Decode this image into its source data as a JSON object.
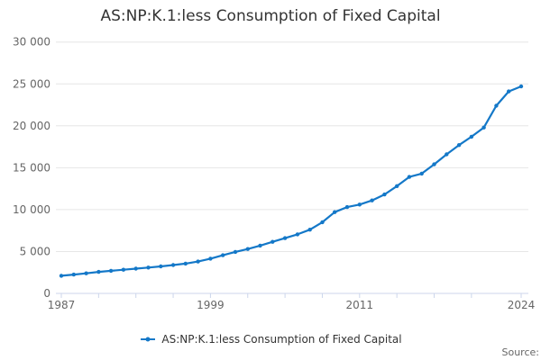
{
  "title": "AS:NP:K.1:less Consumption of Fixed Capital",
  "legend": {
    "label": "AS:NP:K.1:less Consumption of Fixed Capital"
  },
  "source_label": "Source:",
  "colors": {
    "series": "#1478c8",
    "grid": "#e6e6e6",
    "axis": "#ccd6eb",
    "axis_text": "#666666",
    "title_text": "#333333",
    "legend_text": "#333333",
    "source_text": "#666666"
  },
  "chart_data": {
    "type": "line",
    "title": "AS:NP:K.1:less Consumption of Fixed Capital",
    "xlabel": "",
    "ylabel": "",
    "xlim": [
      1987,
      2024
    ],
    "ylim": [
      0,
      30000
    ],
    "grid": true,
    "legend_position": "bottom",
    "marker": "circle",
    "yticks": [
      0,
      5000,
      10000,
      15000,
      20000,
      25000,
      30000
    ],
    "ytick_labels": [
      "0",
      "5 000",
      "10 000",
      "15 000",
      "20 000",
      "25 000",
      "30 000"
    ],
    "xticks": [
      1987,
      1990,
      1993,
      1996,
      1999,
      2002,
      2005,
      2008,
      2011,
      2014,
      2017,
      2020,
      2024
    ],
    "xtick_labeled": [
      1987,
      1999,
      2011,
      2024
    ],
    "xtick_labels": [
      "1987",
      "1999",
      "2011",
      "2024"
    ],
    "x": [
      1987,
      1988,
      1989,
      1990,
      1991,
      1992,
      1993,
      1994,
      1995,
      1996,
      1997,
      1998,
      1999,
      2000,
      2001,
      2002,
      2003,
      2004,
      2005,
      2006,
      2007,
      2008,
      2009,
      2010,
      2011,
      2012,
      2013,
      2014,
      2015,
      2016,
      2017,
      2018,
      2019,
      2020,
      2021,
      2022,
      2023,
      2024
    ],
    "series": [
      {
        "name": "AS:NP:K.1:less Consumption of Fixed Capital",
        "values": [
          2100,
          2250,
          2400,
          2570,
          2700,
          2830,
          2950,
          3080,
          3220,
          3380,
          3560,
          3800,
          4150,
          4550,
          4950,
          5300,
          5700,
          6150,
          6600,
          7050,
          7600,
          8500,
          9700,
          10300,
          10600,
          11100,
          11800,
          12800,
          13900,
          14300,
          15400,
          16600,
          17700,
          18700,
          19800,
          22400,
          24100,
          24700
        ]
      }
    ]
  }
}
